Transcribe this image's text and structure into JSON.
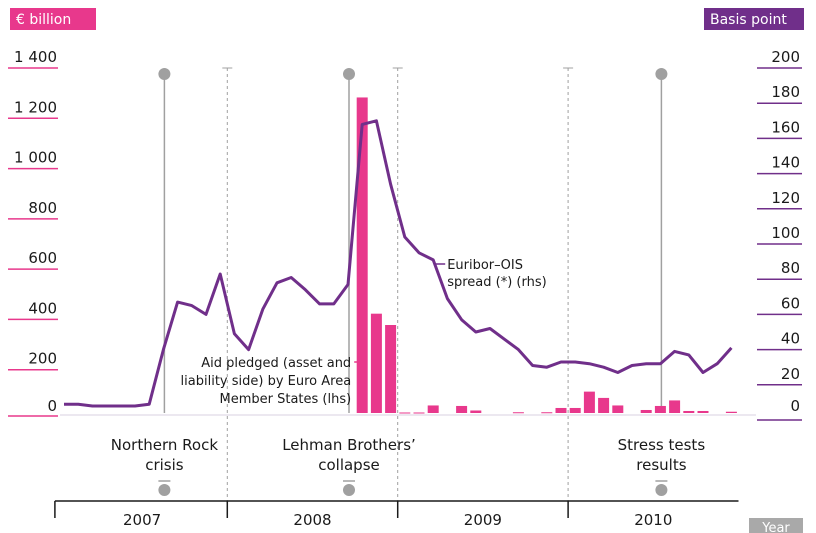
{
  "chart_data": {
    "type": "bar+line",
    "left_axis": {
      "label": "€ billion",
      "ticks": [
        "1 400",
        "1 200",
        "1 000",
        "800",
        "600",
        "400",
        "200",
        "0"
      ],
      "ylim": [
        0,
        1400
      ]
    },
    "right_axis": {
      "label": "Basis point",
      "ticks": [
        "200",
        "180",
        "160",
        "140",
        "120",
        "100",
        "80",
        "60",
        "40",
        "20",
        "0"
      ],
      "ylim": [
        0,
        200
      ]
    },
    "x_axis": {
      "label": "Year",
      "years": [
        "2007",
        "2008",
        "2009",
        "2010"
      ],
      "start": "2007-01",
      "end": "2010-12"
    },
    "events": [
      {
        "label_lines": [
          "Northern Rock",
          "crisis"
        ],
        "date": "2007-08"
      },
      {
        "label_lines": [
          "Lehman Brothers’",
          "collapse"
        ],
        "date": "2008-09"
      },
      {
        "label_lines": [
          "Stress tests",
          "results"
        ],
        "date": "2010-07"
      }
    ],
    "series": [
      {
        "name": "Aid pledged (asset and liability side) by Euro Area Member States (lhs)",
        "label_lines": [
          "Aid pledged (asset and",
          "liability side) by Euro Area",
          "Member States (lhs)"
        ],
        "axis": "left",
        "type": "bar",
        "color": "#e8388c",
        "data": [
          [
            "2008-10",
            1255
          ],
          [
            "2008-11",
            395
          ],
          [
            "2008-12",
            350
          ],
          [
            "2009-01",
            2
          ],
          [
            "2009-02",
            2
          ],
          [
            "2009-03",
            30
          ],
          [
            "2009-05",
            28
          ],
          [
            "2009-06",
            10
          ],
          [
            "2009-09",
            3
          ],
          [
            "2009-11",
            3
          ],
          [
            "2009-12",
            20
          ],
          [
            "2010-01",
            20
          ],
          [
            "2010-02",
            85
          ],
          [
            "2010-03",
            60
          ],
          [
            "2010-04",
            30
          ],
          [
            "2010-06",
            12
          ],
          [
            "2010-07",
            28
          ],
          [
            "2010-08",
            50
          ],
          [
            "2010-09",
            8
          ],
          [
            "2010-10",
            8
          ],
          [
            "2010-12",
            5
          ]
        ]
      },
      {
        "name": "Euribor–OIS spread (*) (rhs)",
        "label_lines": [
          "Euribor–OIS",
          "spread (*) (rhs)"
        ],
        "axis": "right",
        "type": "line",
        "color": "#702f8a",
        "data": [
          [
            "2007-01",
            5
          ],
          [
            "2007-02",
            5
          ],
          [
            "2007-03",
            4
          ],
          [
            "2007-04",
            4
          ],
          [
            "2007-05",
            4
          ],
          [
            "2007-06",
            4
          ],
          [
            "2007-07",
            5
          ],
          [
            "2007-08",
            36
          ],
          [
            "2007-09",
            63
          ],
          [
            "2007-10",
            61
          ],
          [
            "2007-11",
            56
          ],
          [
            "2007-12",
            79
          ],
          [
            "2008-01",
            45
          ],
          [
            "2008-02",
            36
          ],
          [
            "2008-03",
            59
          ],
          [
            "2008-04",
            74
          ],
          [
            "2008-05",
            77
          ],
          [
            "2008-06",
            70
          ],
          [
            "2008-07",
            62
          ],
          [
            "2008-08",
            62
          ],
          [
            "2008-09",
            73
          ],
          [
            "2008-10",
            164
          ],
          [
            "2008-11",
            166
          ],
          [
            "2008-12",
            130
          ],
          [
            "2009-01",
            100
          ],
          [
            "2009-02",
            91
          ],
          [
            "2009-03",
            87
          ],
          [
            "2009-04",
            65
          ],
          [
            "2009-05",
            53
          ],
          [
            "2009-06",
            46
          ],
          [
            "2009-07",
            48
          ],
          [
            "2009-08",
            42
          ],
          [
            "2009-09",
            36
          ],
          [
            "2009-10",
            27
          ],
          [
            "2009-11",
            26
          ],
          [
            "2009-12",
            29
          ],
          [
            "2010-01",
            29
          ],
          [
            "2010-02",
            28
          ],
          [
            "2010-03",
            26
          ],
          [
            "2010-04",
            23
          ],
          [
            "2010-05",
            27
          ],
          [
            "2010-06",
            28
          ],
          [
            "2010-07",
            28
          ],
          [
            "2010-08",
            35
          ],
          [
            "2010-09",
            33
          ],
          [
            "2010-10",
            23
          ],
          [
            "2010-11",
            28
          ],
          [
            "2010-12",
            37
          ]
        ]
      }
    ],
    "colors": {
      "accent_pink": "#e8388c",
      "accent_purple": "#702f8a",
      "guide_grey": "#a0a0a0"
    }
  }
}
